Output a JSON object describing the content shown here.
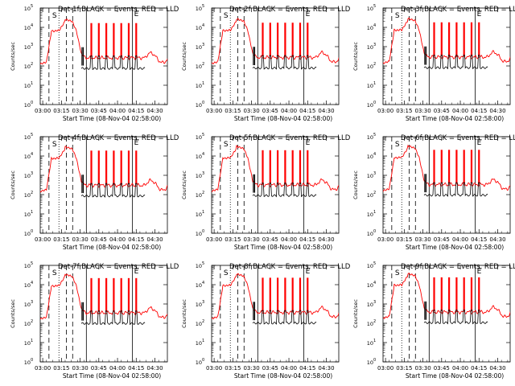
{
  "colors": {
    "events": "#000000",
    "lld": "#ff0000",
    "background": "#ffffff"
  },
  "common": {
    "xlabel": "Start Time (08-Nov-04 02:58:00)",
    "ylabel": "Counts/sec",
    "xticks": [
      "03:00",
      "03:15",
      "03:30",
      "03:45",
      "04:00",
      "04:15",
      "04:30"
    ],
    "yticks": [
      "10^0",
      "10^1",
      "10^2",
      "10^3",
      "10^4",
      "10^5"
    ],
    "xlim": [
      "02:58",
      "04:40"
    ],
    "ylim": [
      1,
      100000
    ],
    "yscale": "log",
    "markers": [
      "S",
      "E"
    ],
    "dashed_lines_time": [
      "03:05",
      "03:19",
      "03:24"
    ],
    "dotted_lines_time": [
      "03:13"
    ],
    "solid_lines_time": [
      "03:35",
      "04:12"
    ]
  },
  "chart_data": [
    {
      "type": "line",
      "title": "Det-1f  BLACK = Events, RED = LLD",
      "series": [
        {
          "name": "Events",
          "color": "#000000"
        },
        {
          "name": "LLD",
          "color": "#ff0000"
        }
      ]
    },
    {
      "type": "line",
      "title": "Det-2f  BLACK = Events, RED = LLD",
      "series": [
        {
          "name": "Events",
          "color": "#000000"
        },
        {
          "name": "LLD",
          "color": "#ff0000"
        }
      ]
    },
    {
      "type": "line",
      "title": "Det-3f  BLACK = Events, RED = LLD",
      "series": [
        {
          "name": "Events",
          "color": "#000000"
        },
        {
          "name": "LLD",
          "color": "#ff0000"
        }
      ]
    },
    {
      "type": "line",
      "title": "Det-4f  BLACK = Events, RED = LLD",
      "series": [
        {
          "name": "Events",
          "color": "#000000"
        },
        {
          "name": "LLD",
          "color": "#ff0000"
        }
      ]
    },
    {
      "type": "line",
      "title": "Det-5f  BLACK = Events, RED = LLD",
      "series": [
        {
          "name": "Events",
          "color": "#000000"
        },
        {
          "name": "LLD",
          "color": "#ff0000"
        }
      ]
    },
    {
      "type": "line",
      "title": "Det-6f  BLACK = Events, RED = LLD",
      "series": [
        {
          "name": "Events",
          "color": "#000000"
        },
        {
          "name": "LLD",
          "color": "#ff0000"
        }
      ]
    },
    {
      "type": "line",
      "title": "Det-7f  BLACK = Events, RED = LLD",
      "series": [
        {
          "name": "Events",
          "color": "#000000"
        },
        {
          "name": "LLD",
          "color": "#ff0000"
        }
      ]
    },
    {
      "type": "line",
      "title": "Det-8f  BLACK = Events, RED = LLD",
      "series": [
        {
          "name": "Events",
          "color": "#000000"
        },
        {
          "name": "LLD",
          "color": "#ff0000"
        }
      ]
    },
    {
      "type": "line",
      "title": "Det-9f  BLACK = Events, RED = LLD",
      "series": [
        {
          "name": "Events",
          "color": "#000000"
        },
        {
          "name": "LLD",
          "color": "#ff0000"
        }
      ]
    }
  ]
}
